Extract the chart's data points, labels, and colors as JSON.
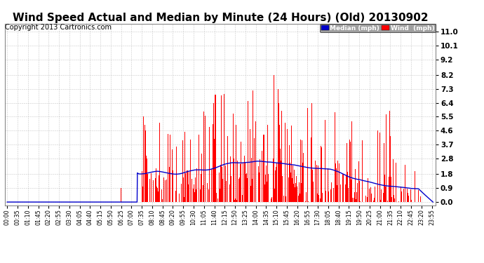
{
  "title": "Wind Speed Actual and Median by Minute (24 Hours) (Old) 20130902",
  "copyright": "Copyright 2013 Cartronics.com",
  "yticks": [
    0.0,
    0.9,
    1.8,
    2.8,
    3.7,
    4.6,
    5.5,
    6.4,
    7.3,
    8.2,
    9.2,
    10.1,
    11.0
  ],
  "ylim": [
    -0.2,
    11.5
  ],
  "total_minutes": 1440,
  "background_color": "#ffffff",
  "grid_color": "#bbbbbb",
  "wind_color": "#ff0000",
  "median_color": "#0000cc",
  "title_fontsize": 11,
  "copyright_fontsize": 7,
  "legend_median_bg": "#0000cc",
  "legend_wind_bg": "#ff0000",
  "legend_text_color": "#ffffff",
  "tick_interval": 35,
  "figsize": [
    6.9,
    3.75
  ],
  "dpi": 100
}
